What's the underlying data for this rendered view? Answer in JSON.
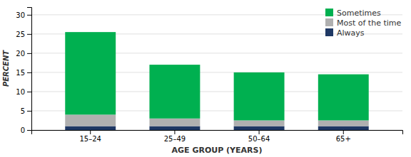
{
  "chart_data": {
    "type": "bar",
    "stacked": true,
    "categories": [
      "15–24",
      "25–49",
      "50–64",
      "65+"
    ],
    "series": [
      {
        "name": "Always",
        "color": "#1f3864",
        "values": [
          1.0,
          1.0,
          1.0,
          1.0
        ]
      },
      {
        "name": "Most of the time",
        "color": "#b0b0b0",
        "values": [
          3.0,
          2.0,
          1.5,
          1.5
        ]
      },
      {
        "name": "Sometimes",
        "color": "#00b050",
        "values": [
          21.5,
          14.0,
          12.5,
          12.0
        ]
      }
    ],
    "xlabel": "AGE GROUP (YEARS)",
    "ylabel": "PERCENT",
    "ylim": [
      0,
      32
    ],
    "yticks": [
      0,
      5,
      10,
      15,
      20,
      25,
      30
    ],
    "grid": true,
    "legend": "upper right"
  }
}
